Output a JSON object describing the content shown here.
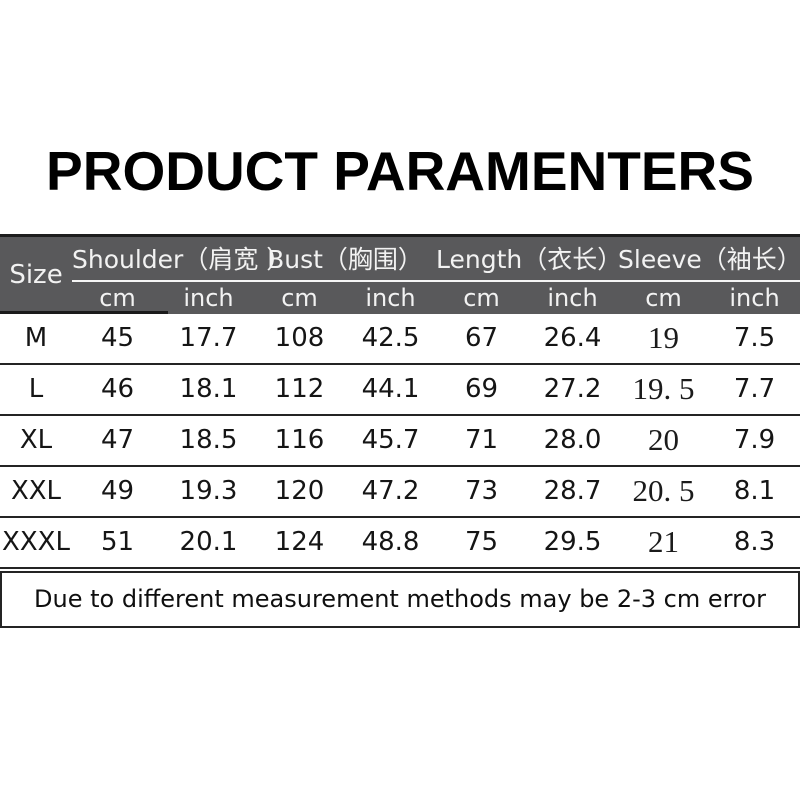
{
  "title": "PRODUCT PARAMENTERS",
  "table": {
    "size_header": "Size",
    "groups": [
      "Shoulder（肩宽 ）",
      "Bust（胸围）",
      "Length（衣长）",
      "Sleeve（袖长）"
    ],
    "units": [
      "cm",
      "inch",
      "cm",
      "inch",
      "cm",
      "inch",
      "cm",
      "inch"
    ],
    "rows": [
      {
        "size": "M",
        "values": [
          "45",
          "17.7",
          "108",
          "42.5",
          "67",
          "26.4",
          "19",
          "7.5"
        ]
      },
      {
        "size": "L",
        "values": [
          "46",
          "18.1",
          "112",
          "44.1",
          "69",
          "27.2",
          "19. 5",
          "7.7"
        ]
      },
      {
        "size": "XL",
        "values": [
          "47",
          "18.5",
          "116",
          "45.7",
          "71",
          "28.0",
          "20",
          "7.9"
        ]
      },
      {
        "size": "XXL",
        "values": [
          "49",
          "19.3",
          "120",
          "47.2",
          "73",
          "28.7",
          "20. 5",
          "8.1"
        ]
      },
      {
        "size": "XXXL",
        "values": [
          "51",
          "20.1",
          "124",
          "48.8",
          "75",
          "29.5",
          "21",
          "8.3"
        ]
      }
    ]
  },
  "note": "Due to different measurement methods may be 2-3 cm error",
  "colors": {
    "header_bg": "#59595b",
    "header_text": "#f2f2f2",
    "grid_line": "#242424",
    "body_text": "#151515",
    "title_text": "#000000",
    "page_bg": "#ffffff"
  }
}
